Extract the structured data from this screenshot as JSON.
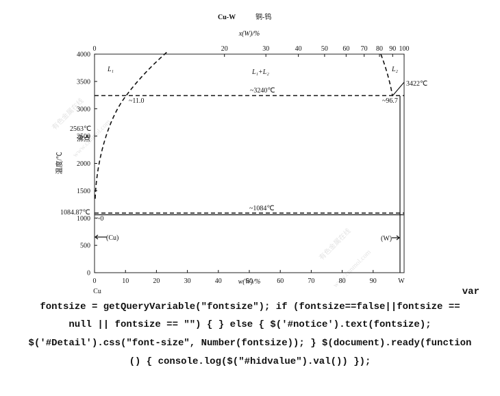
{
  "diagram": {
    "title": "Cu-W",
    "title_cn": "铜-钨",
    "top_axis": {
      "label": "x(W)/%",
      "ticks": [
        0,
        20,
        30,
        40,
        50,
        60,
        70,
        80,
        90,
        100
      ]
    },
    "bottom_axis": {
      "label": "w(W)/%",
      "ticks": [
        0,
        10,
        20,
        30,
        40,
        50,
        60,
        70,
        80,
        90
      ],
      "end_label": "W",
      "start_element": "Cu"
    },
    "left_axis": {
      "label": "温度/℃",
      "ticks": [
        0,
        500,
        1000,
        1500,
        2000,
        2500,
        3000,
        3500,
        4000
      ]
    },
    "annotations": [
      "L₁",
      "L₁+L₂",
      "L₂",
      "~3240℃",
      "3422℃",
      "~11.0",
      "~96.7",
      "2563℃",
      "沸点",
      "1084.87℃",
      "~1084℃",
      "~0",
      "(Cu)",
      "(W)"
    ],
    "watermarks": [
      "有色金属在线",
      "www.cnnmol.com",
      "有色金属在线",
      "www.cnnmol.com"
    ]
  },
  "code_text": {
    "lines": [
      "var",
      "fontsize = getQueryVariable(\"fontsize\"); if (fontsize==false||fontsize ==",
      "null || fontsize == \"\") { } else { $('#notice').text(fontsize);",
      "$('#Detail').css(\"font-size\", Number(fontsize)); } $(document).ready(function",
      "() { console.log($(\"#hidvalue\").val()) });"
    ]
  }
}
